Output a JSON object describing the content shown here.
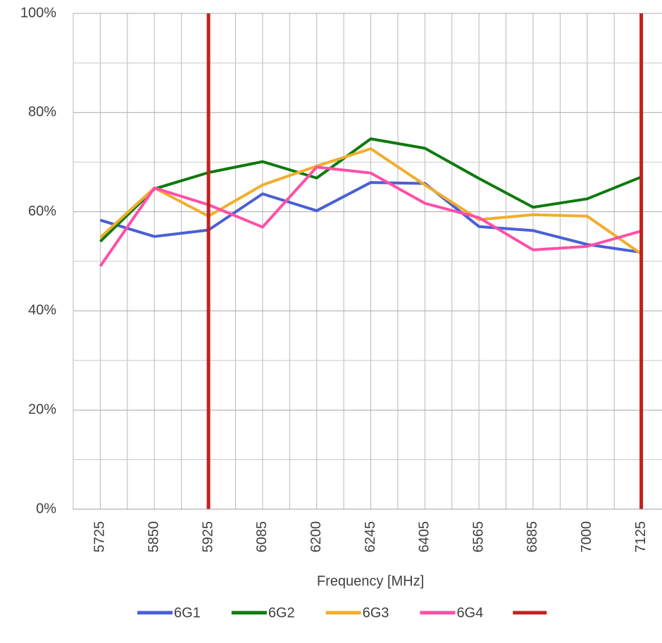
{
  "chart_data": {
    "type": "line",
    "x_label": "Frequency [MHz]",
    "categories": [
      "5725",
      "5850",
      "5925",
      "6085",
      "6200",
      "6245",
      "6405",
      "6565",
      "6885",
      "7000",
      "7125"
    ],
    "series": [
      {
        "name": "6G1",
        "color": "#4a5fd5",
        "values": [
          58.3,
          55,
          56.3,
          63.6,
          60.2,
          65.9,
          65.7,
          57,
          56.2,
          53.4,
          51.8
        ]
      },
      {
        "name": "6G2",
        "color": "#0e7a0e",
        "values": [
          54,
          64.6,
          67.9,
          70.1,
          66.8,
          74.7,
          72.8,
          66.7,
          60.9,
          62.6,
          67
        ]
      },
      {
        "name": "6G3",
        "color": "#f0ae2e",
        "values": [
          54.8,
          64.8,
          59.1,
          65.4,
          69.2,
          72.7,
          65.4,
          58.4,
          59.4,
          59.1,
          51.5
        ]
      },
      {
        "name": "6G4",
        "color": "#ff4fa8",
        "values": [
          49,
          64.8,
          61.4,
          56.9,
          69,
          67.8,
          61.7,
          58.8,
          52.3,
          53,
          56.1
        ]
      }
    ],
    "vlines": {
      "color": "#c0211f",
      "at": [
        "5925",
        "7125"
      ]
    },
    "ylim": [
      0,
      100
    ],
    "yticks": [
      {
        "value": 0,
        "label": "0%"
      },
      {
        "value": 20,
        "label": "20%"
      },
      {
        "value": 40,
        "label": "40%"
      },
      {
        "value": 60,
        "label": "60%"
      },
      {
        "value": 80,
        "label": "80%"
      },
      {
        "value": 100,
        "label": "100%"
      }
    ],
    "grid": true,
    "legend": "bottom"
  }
}
